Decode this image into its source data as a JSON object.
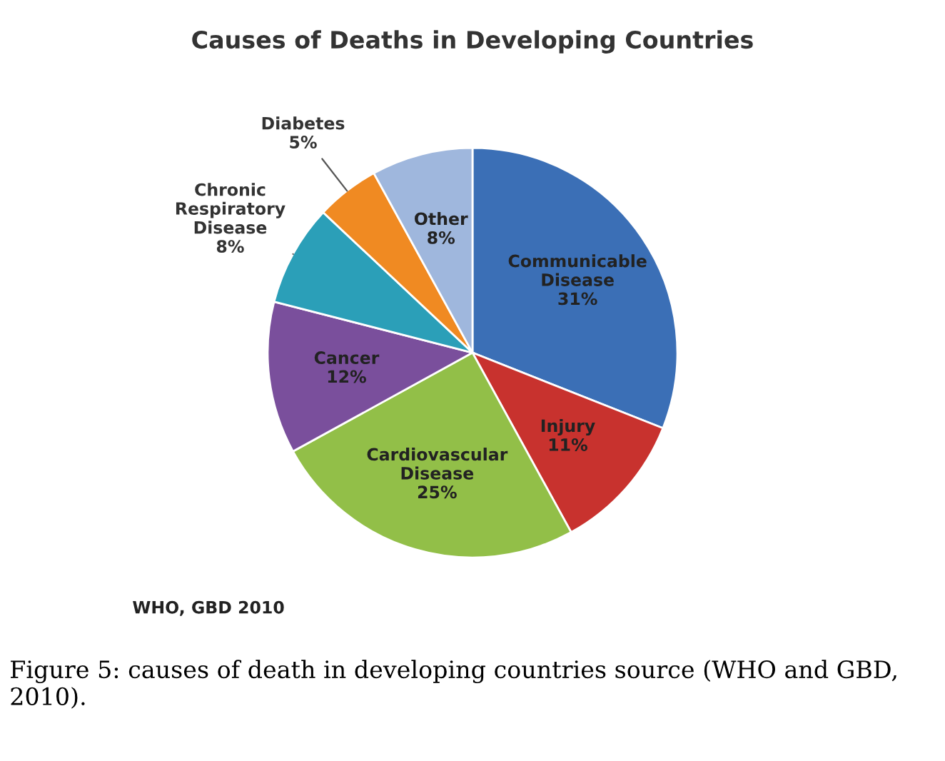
{
  "chart_data": {
    "type": "pie",
    "title": "Causes of Deaths in Developing Countries",
    "categories": [
      "Communicable\nDisease",
      "Injury",
      "Cardiovascular\nDisease",
      "Cancer",
      "Chronic\nRespiratory\nDisease",
      "Diabetes",
      "Other"
    ],
    "values": [
      31,
      11,
      25,
      12,
      8,
      5,
      8
    ],
    "colors": [
      "#3b6fb6",
      "#c8322e",
      "#92bf48",
      "#7a4f9c",
      "#2b9fb8",
      "#f08a22",
      "#9fb7dd"
    ],
    "value_labels": [
      "31%",
      "11%",
      "25%",
      "12%",
      "8%",
      "5%",
      "8%"
    ],
    "annotations": [
      "WHO, GBD 2010",
      "Figure 5: causes of death in developing countries source (WHO and GBD, 2010)."
    ]
  }
}
